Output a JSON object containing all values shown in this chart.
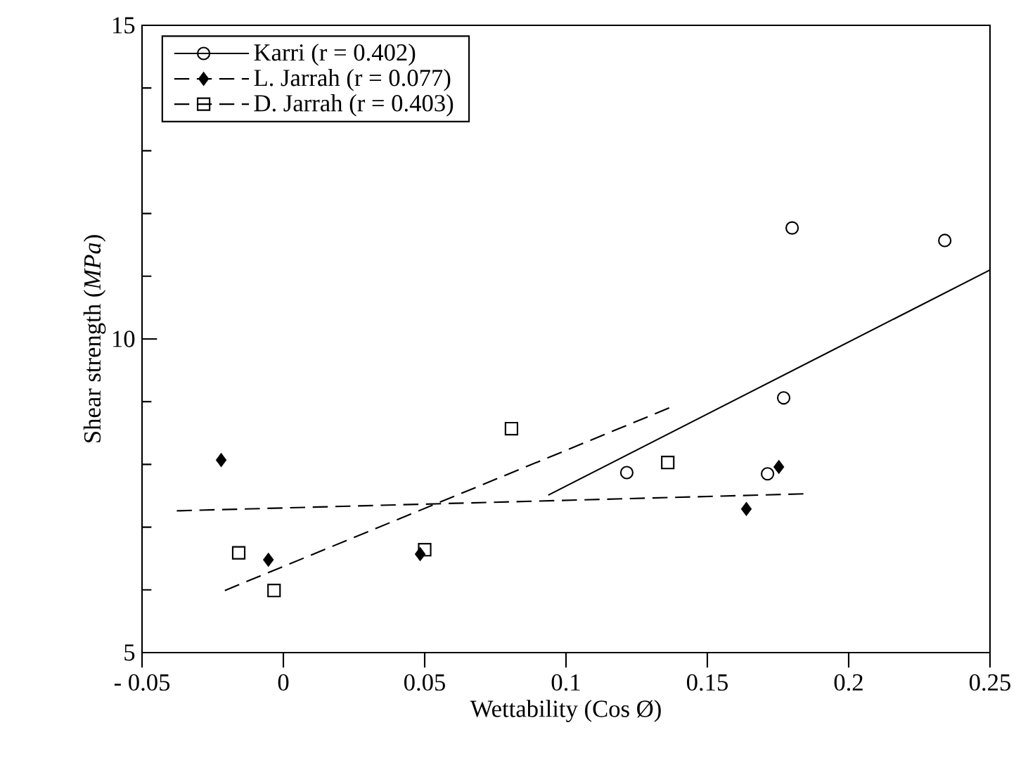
{
  "chart_data": {
    "type": "scatter",
    "xlabel": "Wettability (Cos Ø)",
    "ylabel": "Shear strength (*MPa*)",
    "xlim": [
      -0.05,
      0.25
    ],
    "ylim": [
      5,
      15
    ],
    "xticks": [
      {
        "value": -0.05,
        "label": "- 0.05"
      },
      0,
      0.05,
      0.1,
      0.15,
      0.2,
      0.25
    ],
    "yticks": [
      5,
      10,
      15
    ],
    "grid": false,
    "legend": "top left",
    "series": [
      {
        "name": "Karri (r = 0.402)",
        "color": "#000000",
        "marker": "circle",
        "x": [
          0.1215,
          0.18,
          0.234,
          0.177,
          0.1713
        ],
        "values": [
          7.87,
          11.77,
          11.57,
          9.06,
          7.85
        ]
      },
      {
        "type": "line",
        "color": "#000000",
        "line_style": "solid",
        "marker": "none",
        "x": [
          0.0937,
          0.25
        ],
        "values": [
          7.51,
          11.1
        ]
      },
      {
        "name": "L. Jarrah (r = 0.077)",
        "color": "#000000",
        "marker": "diamond",
        "x": [
          -0.022,
          -0.0053,
          0.0484,
          0.1638,
          0.1753
        ],
        "values": [
          8.07,
          6.48,
          6.57,
          7.29,
          7.96
        ]
      },
      {
        "type": "line",
        "color": "#000000",
        "line_style": "dashed",
        "marker": "none",
        "x": [
          -0.0377,
          0.184
        ],
        "values": [
          7.26,
          7.53
        ]
      },
      {
        "name": "D. Jarrah (r = 0.403)",
        "color": "#000000",
        "marker": "square",
        "x": [
          -0.0158,
          -0.0033,
          0.05,
          0.0807,
          0.136
        ],
        "values": [
          6.59,
          5.99,
          6.64,
          8.57,
          8.03
        ]
      },
      {
        "type": "line",
        "color": "#000000",
        "line_style": "dashed",
        "marker": "none",
        "x": [
          -0.0207,
          0.1365
        ],
        "values": [
          5.99,
          8.9
        ]
      }
    ]
  }
}
